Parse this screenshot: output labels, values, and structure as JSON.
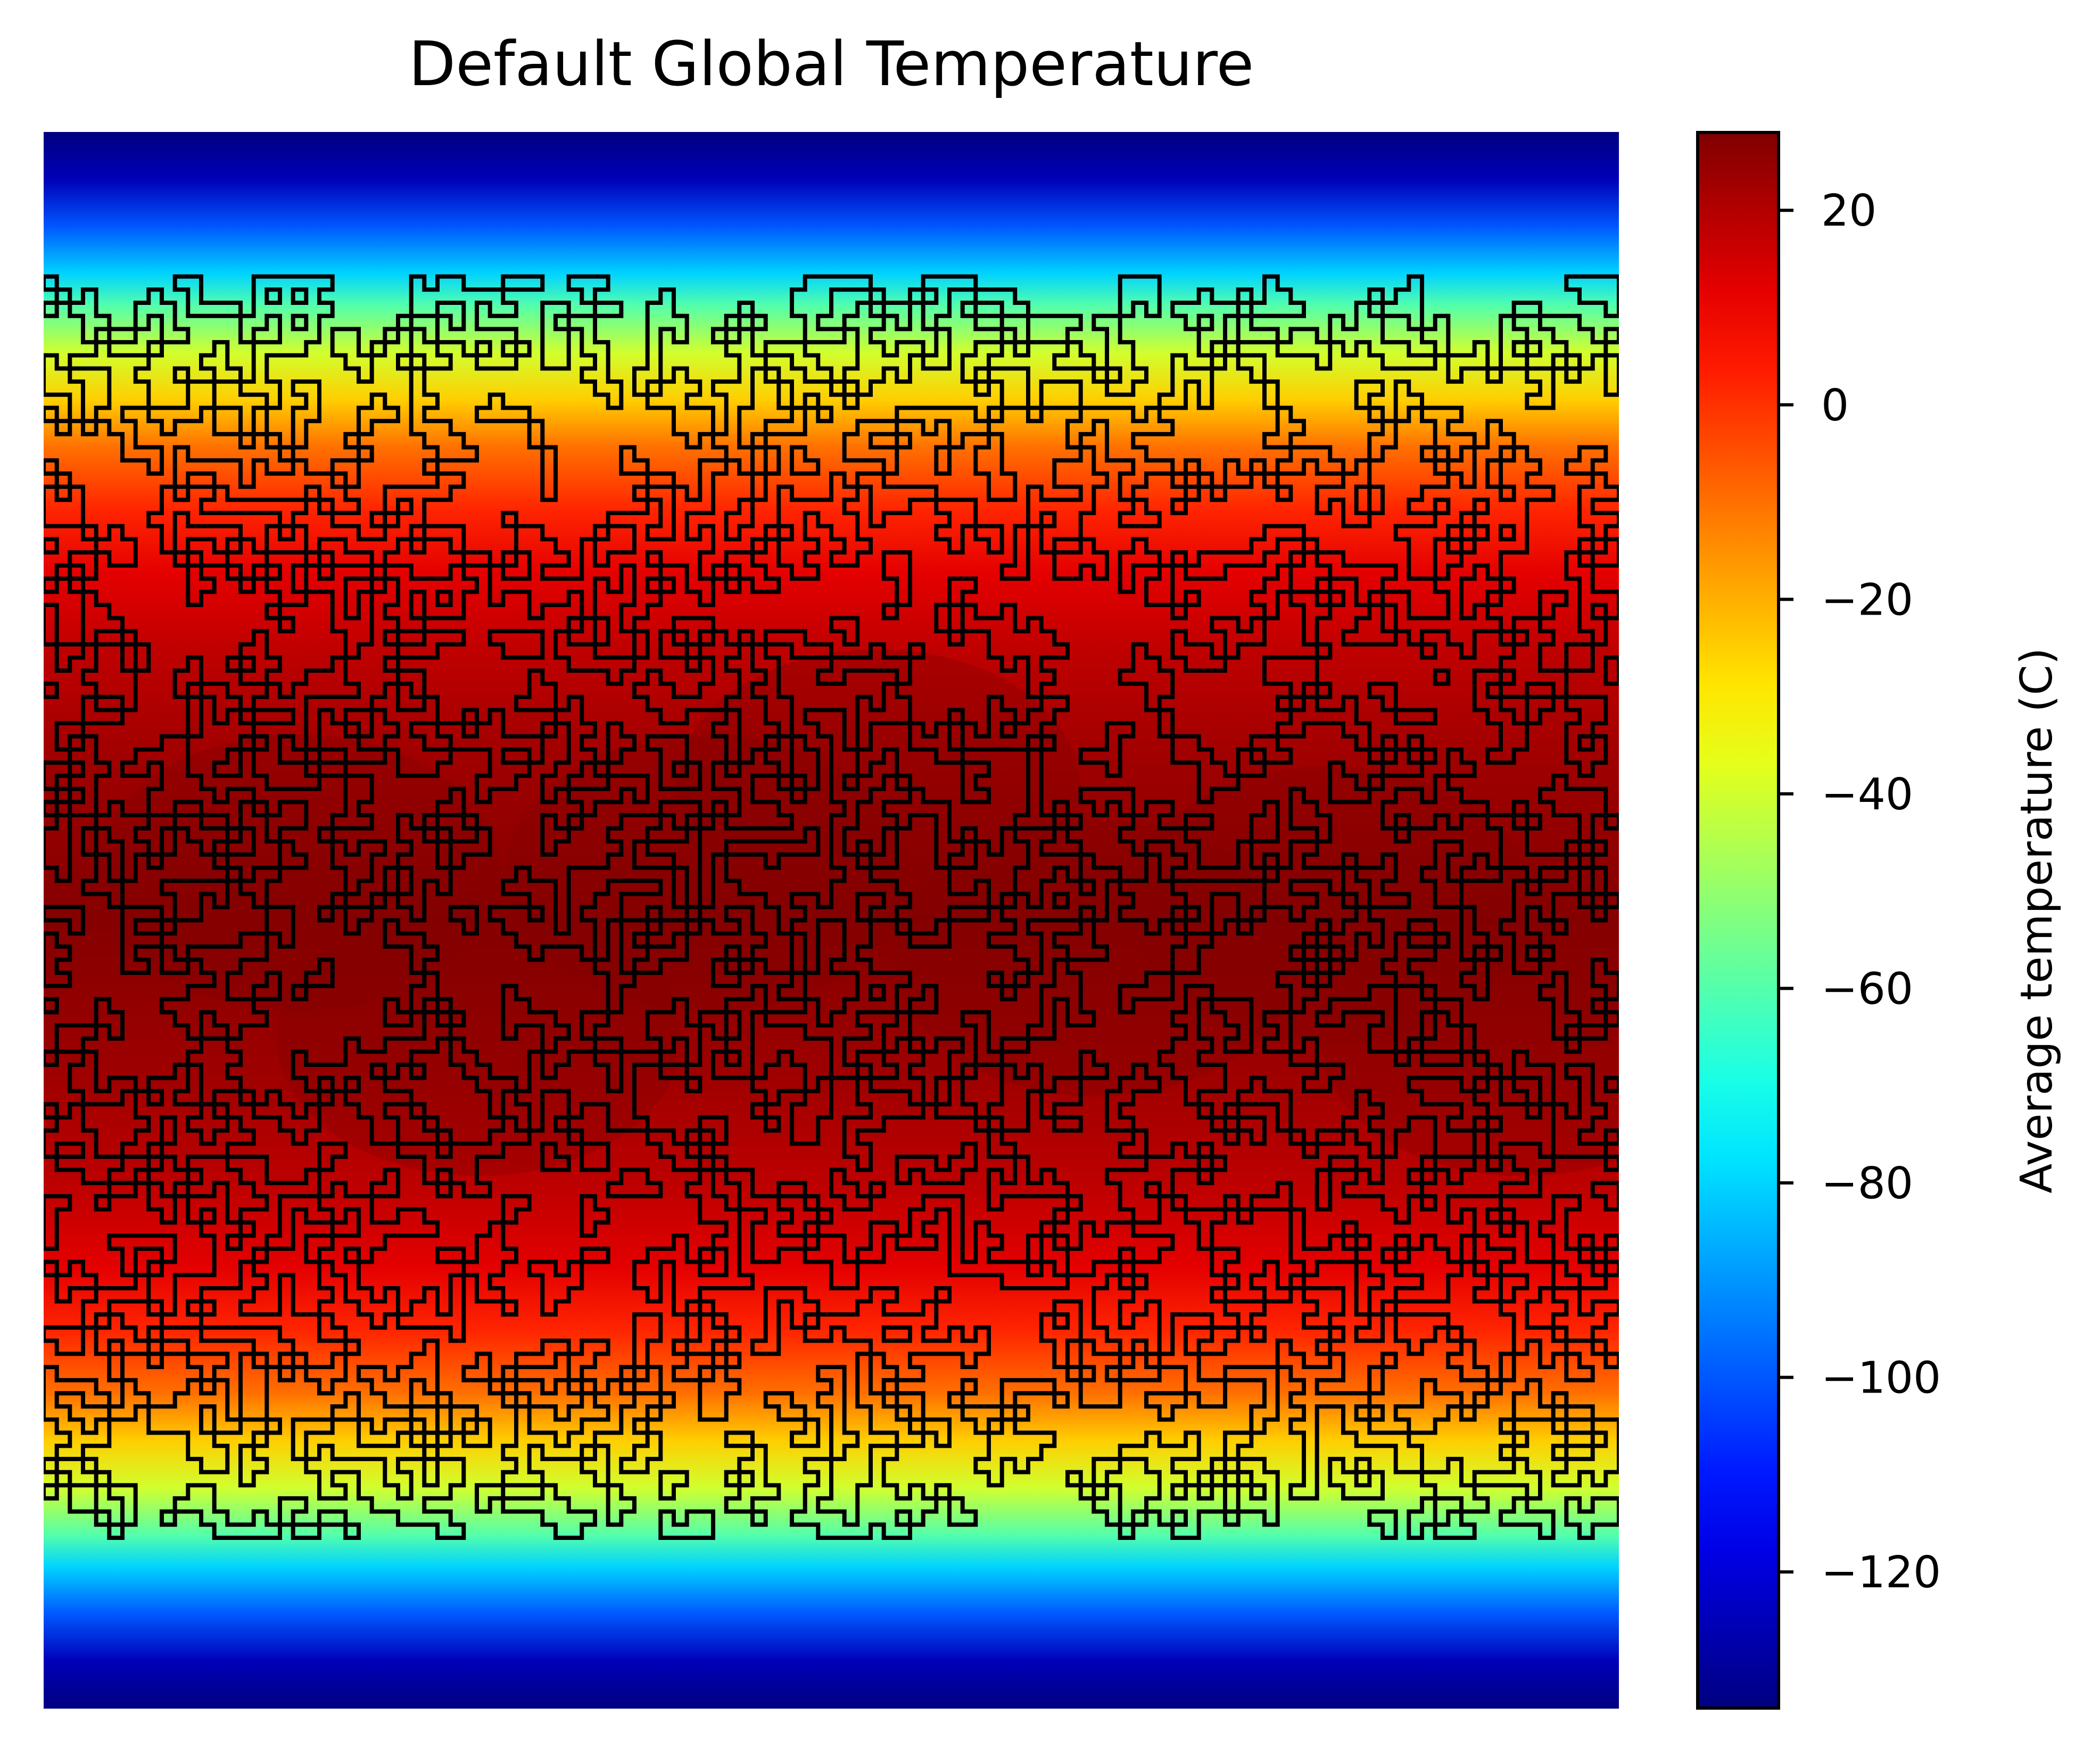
{
  "chart_data": {
    "type": "heatmap",
    "title": "Default Global Temperature",
    "xlabel": "",
    "ylabel": "",
    "colormap": "jet",
    "colorbar": {
      "label": "Average temperature (C)",
      "range": [
        -134,
        28
      ],
      "ticks": [
        20,
        0,
        -20,
        -40,
        -60,
        -80,
        -100,
        -120
      ],
      "tick_labels": [
        "20",
        "0",
        "−20",
        "−40",
        "−60",
        "−80",
        "−100",
        "−120"
      ]
    },
    "grid": false,
    "overlay": "black land-cell outlines (randomly generated continents)",
    "latitude_profile_C": [
      [
        0.0,
        -134
      ],
      [
        0.03,
        -125
      ],
      [
        0.06,
        -100
      ],
      [
        0.09,
        -80
      ],
      [
        0.11,
        -60
      ],
      [
        0.14,
        -40
      ],
      [
        0.17,
        -25
      ],
      [
        0.2,
        -10
      ],
      [
        0.24,
        2
      ],
      [
        0.28,
        12
      ],
      [
        0.33,
        18
      ],
      [
        0.4,
        23
      ],
      [
        0.47,
        26
      ],
      [
        0.5,
        27
      ],
      [
        0.53,
        26
      ],
      [
        0.6,
        23
      ],
      [
        0.67,
        18
      ],
      [
        0.72,
        12
      ],
      [
        0.76,
        2
      ],
      [
        0.8,
        -10
      ],
      [
        0.83,
        -25
      ],
      [
        0.86,
        -40
      ],
      [
        0.89,
        -60
      ],
      [
        0.91,
        -80
      ],
      [
        0.94,
        -100
      ],
      [
        0.97,
        -125
      ],
      [
        1.0,
        -134
      ]
    ]
  }
}
